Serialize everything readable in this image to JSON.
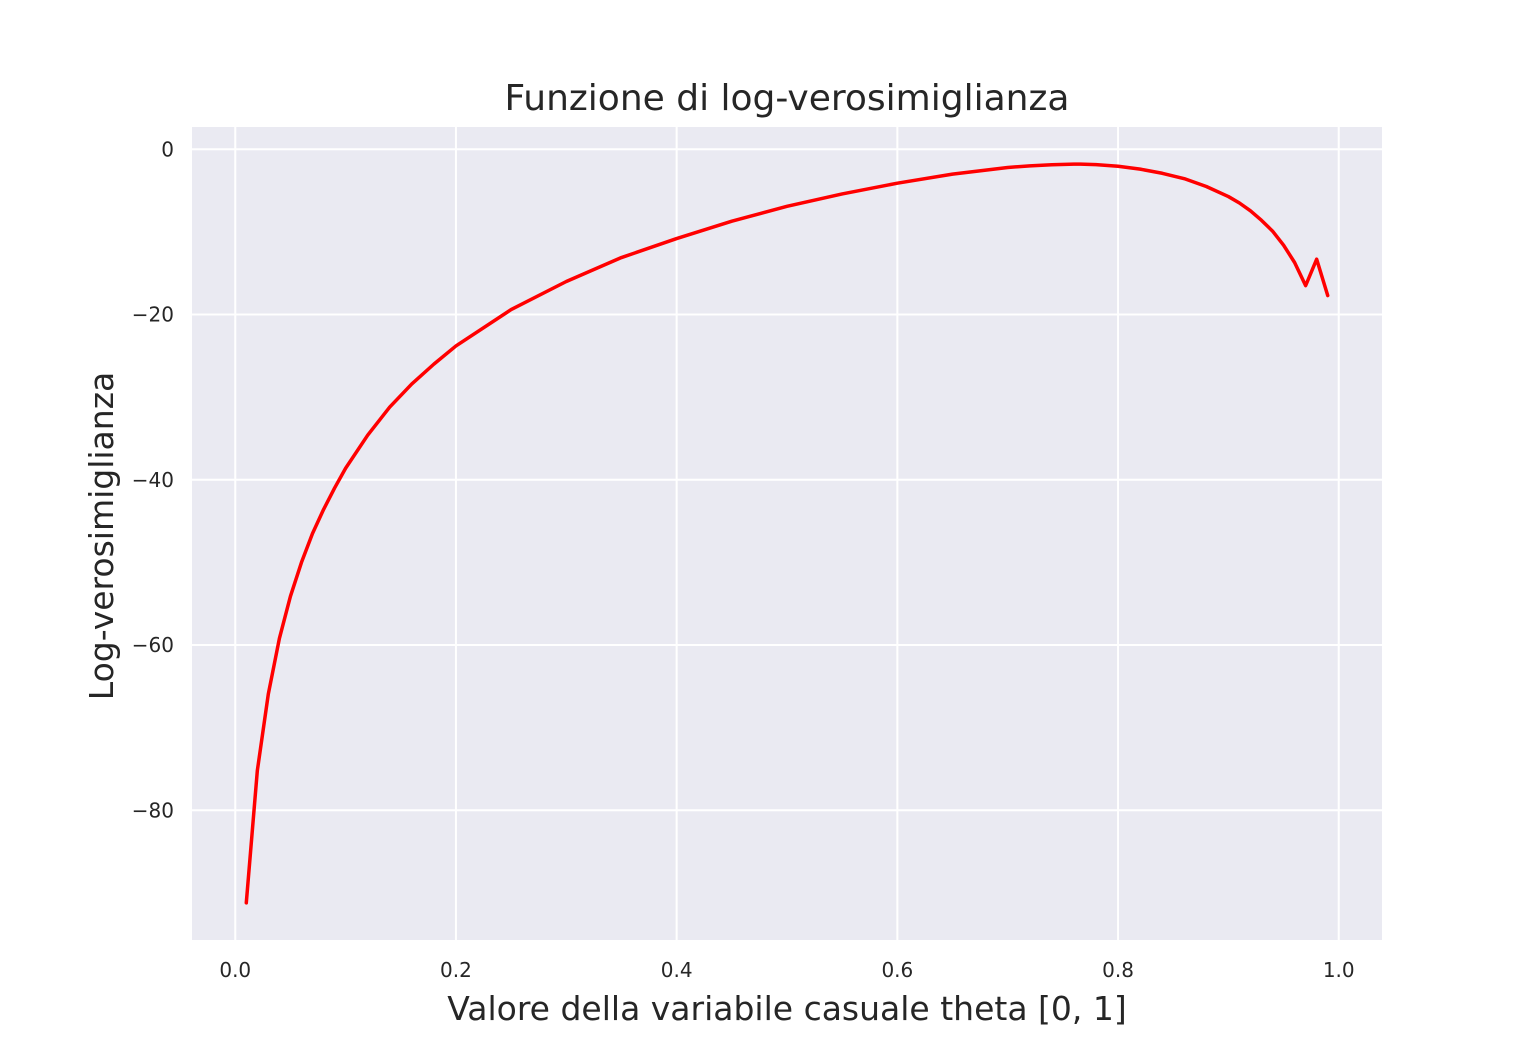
{
  "colors": {
    "plot_background": "#eaeaf2",
    "grid": "#ffffff",
    "series": "#ff0000",
    "text": "#262626"
  },
  "chart_data": {
    "type": "line",
    "title": "Funzione di log-verosimiglianza",
    "xlabel": "Valore della variabile casuale theta [0, 1]",
    "ylabel": "Log-verosimiglianza",
    "xlim": [
      -0.0392,
      1.0392
    ],
    "ylim": [
      -95.7,
      2.7
    ],
    "grid": true,
    "x_ticks": [
      0.0,
      0.2,
      0.4,
      0.6,
      0.8,
      1.0
    ],
    "x_tick_labels": [
      "0.0",
      "0.2",
      "0.4",
      "0.6",
      "0.8",
      "1.0"
    ],
    "y_ticks": [
      0,
      -20,
      -40,
      -60,
      -80
    ],
    "y_tick_labels": [
      "0",
      "−20",
      "−40",
      "−60",
      "−80"
    ],
    "series": [
      {
        "color": "#ff0000",
        "x": [
          0.01,
          0.02,
          0.03,
          0.04,
          0.05,
          0.06,
          0.07,
          0.08,
          0.09,
          0.1,
          0.12,
          0.14,
          0.16,
          0.18,
          0.2,
          0.25,
          0.3,
          0.35,
          0.4,
          0.45,
          0.5,
          0.55,
          0.6,
          0.65,
          0.7,
          0.72,
          0.74,
          0.76,
          0.766,
          0.78,
          0.8,
          0.82,
          0.84,
          0.86,
          0.88,
          0.9,
          0.91,
          0.92,
          0.93,
          0.94,
          0.95,
          0.96,
          0.97,
          0.98,
          0.99
        ],
        "y": [
          -91.2,
          -75.2,
          -65.9,
          -59.2,
          -54.1,
          -50.0,
          -46.5,
          -43.6,
          -41.0,
          -38.6,
          -34.6,
          -31.2,
          -28.4,
          -26.0,
          -23.8,
          -19.4,
          -16.0,
          -13.1,
          -10.8,
          -8.7,
          -6.9,
          -5.4,
          -4.1,
          -3.0,
          -2.2,
          -2.0,
          -1.87,
          -1.8,
          -1.8,
          -1.86,
          -2.05,
          -2.4,
          -2.9,
          -3.55,
          -4.5,
          -5.72,
          -6.5,
          -7.45,
          -8.6,
          -9.9,
          -11.6,
          -13.7,
          -16.5,
          -13.3,
          -17.7
        ]
      }
    ]
  }
}
